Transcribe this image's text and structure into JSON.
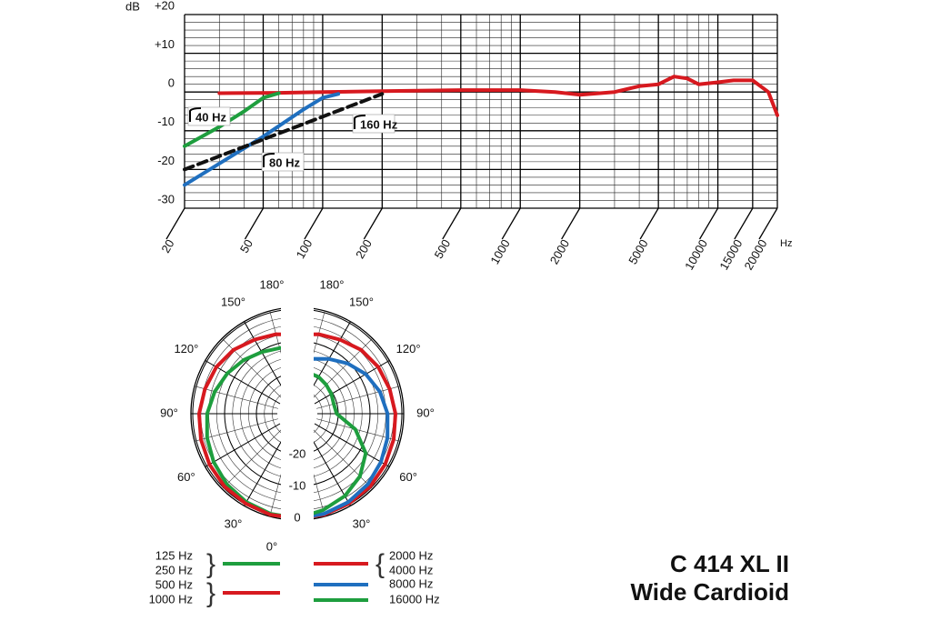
{
  "chart_data": [
    {
      "type": "line",
      "y_label": "dB",
      "x_label": "Hz",
      "xscale": "log",
      "xlim": [
        20,
        20000
      ],
      "ylim": [
        -30,
        20
      ],
      "xticks": [
        20,
        50,
        100,
        200,
        500,
        1000,
        2000,
        5000,
        10000,
        15000,
        20000
      ],
      "yticks": [
        -30,
        -20,
        -10,
        0,
        {
          "value": 10,
          "label": "+10"
        },
        {
          "value": 20,
          "label": "+20"
        }
      ],
      "grid": true,
      "series": [
        {
          "color": "#d7191f",
          "style": "solid",
          "x": [
            30,
            60,
            100,
            200,
            500,
            1000,
            1500,
            2000,
            3000,
            4000,
            5000,
            6000,
            7000,
            8000,
            10000,
            12000,
            15000,
            18000,
            20000
          ],
          "values": [
            -0.3,
            -0.2,
            0,
            0.2,
            0.5,
            0.5,
            0,
            -0.7,
            0,
            1.5,
            2,
            4,
            3.5,
            2,
            2.5,
            3,
            3,
            0,
            -6
          ]
        },
        {
          "color": "#1e9e3e",
          "style": "solid",
          "label": "40 Hz",
          "x": [
            20,
            30,
            40,
            50,
            60
          ],
          "values": [
            -14,
            -9,
            -5,
            -1.5,
            -0.3
          ]
        },
        {
          "color": "#1f6fbf",
          "style": "solid",
          "label": "80 Hz",
          "x": [
            20,
            50,
            80,
            100,
            120
          ],
          "values": [
            -24,
            -11.5,
            -4.5,
            -1.5,
            -0.5
          ]
        },
        {
          "color": "#111111",
          "style": "dashed",
          "label": "160 Hz",
          "x": [
            20,
            200
          ],
          "values": [
            -20,
            -0.5
          ]
        }
      ]
    },
    {
      "type": "polar",
      "rlim": [
        -30,
        0
      ],
      "rticks": [
        -20,
        -10,
        0
      ],
      "angleticks": [
        {
          "value": 0,
          "label": "0°"
        },
        {
          "value": 30,
          "label": "30°"
        },
        {
          "value": 60,
          "label": "60°"
        },
        {
          "value": 90,
          "label": "90°"
        },
        {
          "value": 120,
          "label": "120°"
        },
        {
          "value": 150,
          "label": "150°"
        },
        {
          "value": 180,
          "label": "180°"
        }
      ],
      "angles": [
        0,
        15,
        30,
        45,
        60,
        75,
        90,
        105,
        120,
        135,
        150,
        165,
        180
      ],
      "series": [
        {
          "name": [
            "125 Hz",
            "250 Hz"
          ],
          "side": "left",
          "color": "#1e9e3e",
          "values": [
            0,
            -0.3,
            -0.8,
            -1.5,
            -2.5,
            -3.5,
            -4.5,
            -6,
            -7.5,
            -9,
            -10.5,
            -11.5,
            -12
          ]
        },
        {
          "name": [
            "500 Hz",
            "1000 Hz"
          ],
          "side": "left",
          "color": "#d7191f",
          "values": [
            0,
            0,
            -0.3,
            -0.5,
            -1,
            -1.5,
            -2,
            -2.8,
            -3.5,
            -4.5,
            -6,
            -7,
            -8
          ]
        },
        {
          "name": [
            "2000 Hz",
            "4000 Hz"
          ],
          "side": "right",
          "color": "#d7191f",
          "values": [
            0,
            0,
            -0.3,
            -0.5,
            -1,
            -1.5,
            -2,
            -2.8,
            -3.5,
            -4.5,
            -6,
            -7,
            -8
          ]
        },
        {
          "name": [
            "8000 Hz"
          ],
          "side": "right",
          "color": "#1f6fbf",
          "values": [
            0,
            -0.3,
            -0.8,
            -1.5,
            -2.5,
            -3.5,
            -4.5,
            -6,
            -8,
            -10.5,
            -13,
            -15,
            -16
          ]
        },
        {
          "name": [
            "16000 Hz"
          ],
          "side": "right",
          "color": "#1e9e3e",
          "values": [
            0,
            -1.5,
            -3,
            -5,
            -8,
            -14,
            -20.5,
            -21,
            -20.5,
            -20,
            -19.5,
            -19.5,
            -20
          ]
        }
      ]
    }
  ],
  "product": {
    "name": "C 414 XL II",
    "pattern": "Wide Cardioid"
  }
}
